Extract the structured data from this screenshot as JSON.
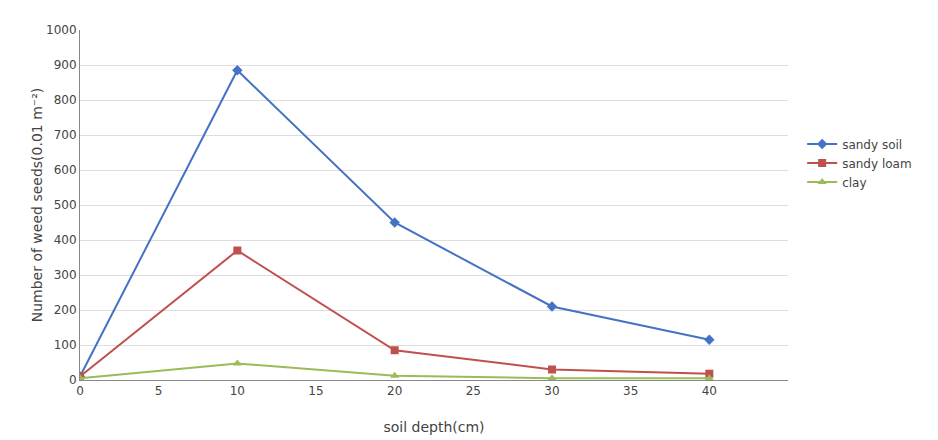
{
  "chart_data": {
    "type": "line",
    "xlabel": "soil depth(cm)",
    "ylabel": "Number of weed seeds(0.01 m⁻²)",
    "x": [
      0,
      10,
      20,
      30,
      40
    ],
    "series": [
      {
        "name": "sandy soil",
        "color": "#4472C4",
        "marker": "diamond",
        "values": [
          10,
          885,
          450,
          210,
          115
        ]
      },
      {
        "name": "sandy loam",
        "color": "#C0504D",
        "marker": "square",
        "values": [
          10,
          370,
          85,
          30,
          18
        ]
      },
      {
        "name": "clay",
        "color": "#9BBB59",
        "marker": "triangle-up",
        "values": [
          5,
          47,
          12,
          5,
          5
        ]
      }
    ],
    "xlim": [
      0,
      45
    ],
    "ylim": [
      0,
      1000
    ],
    "xticks": [
      0,
      5,
      10,
      15,
      20,
      25,
      30,
      35,
      40
    ],
    "yticks": [
      0,
      100,
      200,
      300,
      400,
      500,
      600,
      700,
      800,
      900,
      1000
    ],
    "grid": "y",
    "legend": "right"
  }
}
